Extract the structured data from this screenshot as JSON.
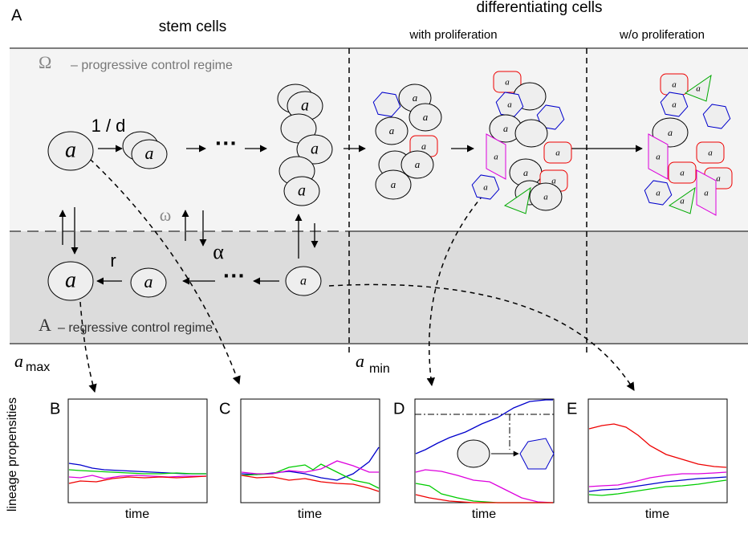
{
  "header": {
    "panel": "A",
    "stem": "stem cells",
    "diff": "differentiating cells",
    "with": "with proliferation",
    "without": "w/o proliferation"
  },
  "regimes": {
    "upper_symbol": "Ω",
    "upper": "– progressive control regime",
    "lower_symbol": "A",
    "lower": "– regressive control regime"
  },
  "rates": {
    "d": "1 / d",
    "omega": "ω",
    "alpha": "α",
    "r": "r"
  },
  "ellipsis": [
    "···",
    "···"
  ],
  "thresholds": {
    "max_symbol": "a",
    "max": "max",
    "min_symbol": "a",
    "min": "min"
  },
  "cells": [
    "a",
    "a",
    "a",
    "a",
    "a",
    "a",
    "a",
    "a",
    "a",
    "a",
    "a",
    "a",
    "a",
    "a",
    "a",
    "a",
    "a",
    "a",
    "a",
    "a",
    "a",
    "a",
    "a",
    "a",
    "a",
    "a",
    "a",
    "a",
    "a",
    "a",
    "a",
    "a",
    "a",
    "a"
  ],
  "y_label": "lineage propensities",
  "panels": [
    {
      "label": "B",
      "x_label": "time"
    },
    {
      "label": "C",
      "x_label": "time"
    },
    {
      "label": "D",
      "x_label": "time"
    },
    {
      "label": "E",
      "x_label": "time"
    }
  ]
}
